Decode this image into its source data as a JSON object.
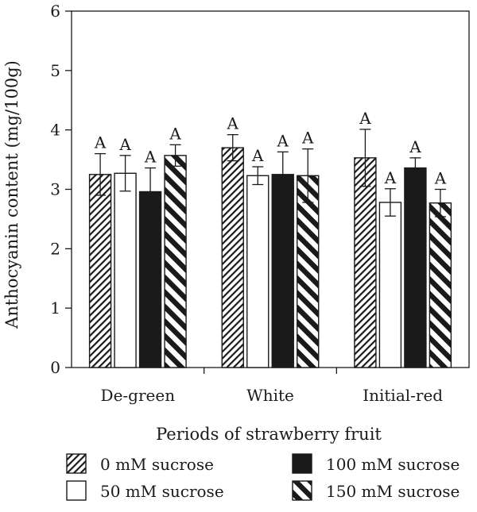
{
  "chart_data": {
    "type": "bar",
    "title": "",
    "xlabel": "Periods of strawberry fruit",
    "ylabel": "Anthocyanin content (mg/100g)",
    "ylim": [
      0,
      6
    ],
    "yticks": [
      "0",
      "1",
      "2",
      "3",
      "4",
      "5",
      "6"
    ],
    "categories": [
      "De-green",
      "White",
      "Initial-red"
    ],
    "series": [
      {
        "name": "0 mM sucrose",
        "pattern": "thin-diagonal-hatch",
        "values": [
          3.25,
          3.7,
          3.53
        ],
        "errors": [
          0.35,
          0.22,
          0.48
        ],
        "labels": [
          "A",
          "A",
          "A"
        ]
      },
      {
        "name": "50 mM sucrose",
        "pattern": "white",
        "values": [
          3.27,
          3.23,
          2.78
        ],
        "errors": [
          0.3,
          0.15,
          0.23
        ],
        "labels": [
          "A",
          "A",
          "A"
        ]
      },
      {
        "name": "100 mM sucrose",
        "pattern": "black",
        "values": [
          2.96,
          3.25,
          3.36
        ],
        "errors": [
          0.4,
          0.38,
          0.17
        ],
        "labels": [
          "A",
          "A",
          "A"
        ]
      },
      {
        "name": "150 mM sucrose",
        "pattern": "thick-diagonal-stripe",
        "values": [
          3.57,
          3.23,
          2.77
        ],
        "errors": [
          0.18,
          0.45,
          0.23
        ],
        "labels": [
          "A",
          "A",
          "A"
        ]
      }
    ],
    "grid": false,
    "legend_position": "bottom",
    "colors": {
      "ink": "#1a1a1a",
      "background": "#ffffff"
    }
  }
}
